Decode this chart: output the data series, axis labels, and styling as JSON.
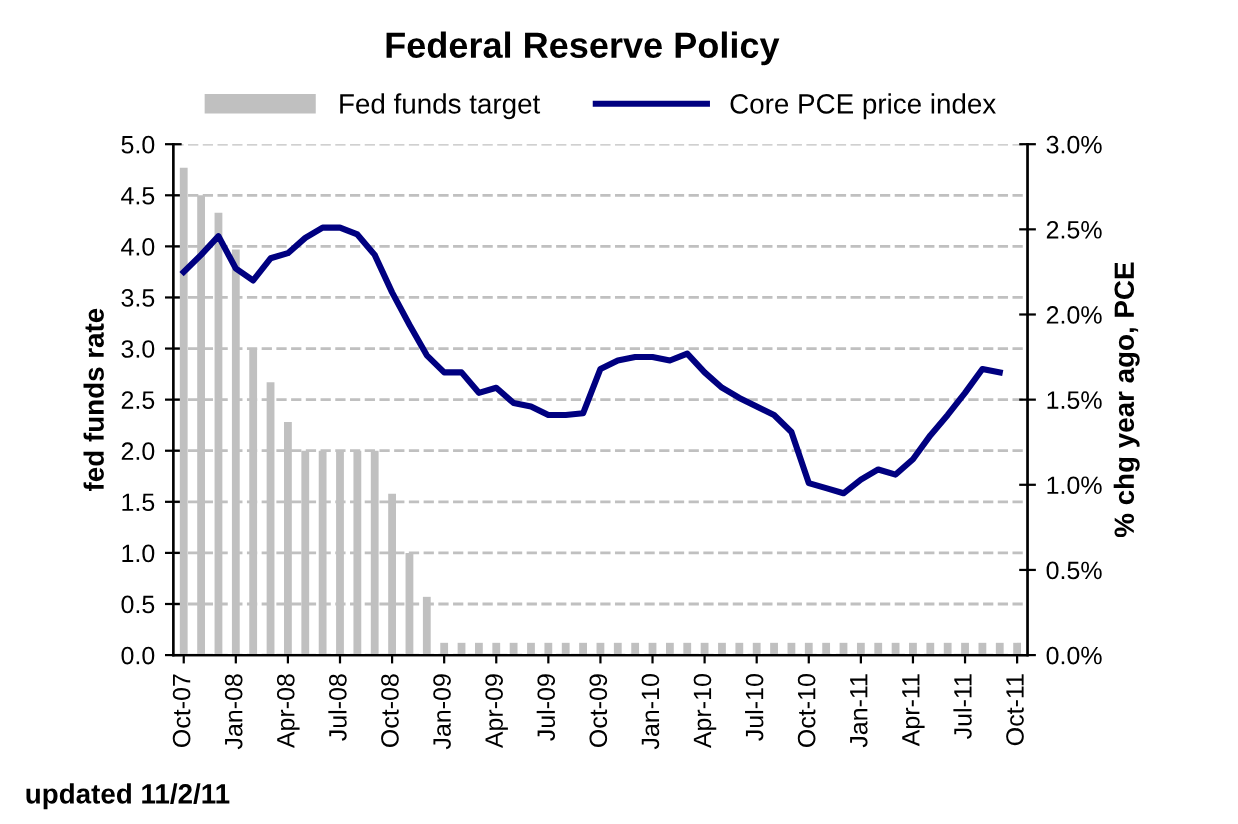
{
  "chart_data": {
    "type": "bar",
    "title": "Federal Reserve Policy",
    "ylabel": "fed funds rate",
    "y2label": "% chg year ago, PCE",
    "annotations": [
      "updated 11/2/11"
    ],
    "categories": [
      "Oct-07",
      null,
      null,
      "Jan-08",
      null,
      null,
      "Apr-08",
      null,
      null,
      "Jul-08",
      null,
      null,
      "Oct-08",
      null,
      null,
      "Jan-09",
      null,
      null,
      "Apr-09",
      null,
      null,
      "Jul-09",
      null,
      null,
      "Oct-09",
      null,
      null,
      "Jan-10",
      null,
      null,
      "Apr-10",
      null,
      null,
      "Jul-10",
      null,
      null,
      "Oct-10",
      null,
      null,
      "Jan-11",
      null,
      null,
      "Apr-11",
      null,
      null,
      "Jul-11",
      null,
      null,
      "Oct-11"
    ],
    "series": [
      {
        "name": "Fed funds target",
        "color": "#c0c0c0",
        "values": [
          4.77,
          4.5,
          4.33,
          3.97,
          3.0,
          2.67,
          2.28,
          2.0,
          2.0,
          2.0,
          2.0,
          2.0,
          1.58,
          1.0,
          0.57,
          0.12,
          0.12,
          0.12,
          0.12,
          0.12,
          0.12,
          0.12,
          0.12,
          0.12,
          0.12,
          0.12,
          0.12,
          0.12,
          0.12,
          0.12,
          0.12,
          0.12,
          0.12,
          0.12,
          0.12,
          0.12,
          0.12,
          0.12,
          0.12,
          0.12,
          0.12,
          0.12,
          0.12,
          0.12,
          0.12,
          0.12,
          0.12,
          0.12,
          0.12
        ]
      },
      {
        "name": "Core PCE price index",
        "type": "line",
        "axis": "y2",
        "color": "#000080",
        "values": [
          2.25,
          2.35,
          2.46,
          2.27,
          2.2,
          2.33,
          2.36,
          2.45,
          2.51,
          2.51,
          2.47,
          2.35,
          2.13,
          1.94,
          1.76,
          1.66,
          1.66,
          1.54,
          1.57,
          1.48,
          1.46,
          1.41,
          1.41,
          1.42,
          1.68,
          1.73,
          1.75,
          1.75,
          1.73,
          1.77,
          1.66,
          1.57,
          1.51,
          1.46,
          1.41,
          1.31,
          1.01,
          0.98,
          0.95,
          1.03,
          1.09,
          1.06,
          1.15,
          1.29,
          1.41,
          1.54,
          1.68,
          1.66,
          null
        ]
      }
    ],
    "ylim": [
      0,
      5
    ],
    "yticks": [
      {
        "value": 0,
        "label": "0.0"
      },
      {
        "value": 0.5,
        "label": "0.5"
      },
      {
        "value": 1,
        "label": "1.0"
      },
      {
        "value": 1.5,
        "label": "1.5"
      },
      {
        "value": 2,
        "label": "2.0"
      },
      {
        "value": 2.5,
        "label": "2.5"
      },
      {
        "value": 3,
        "label": "3.0"
      },
      {
        "value": 3.5,
        "label": "3.5"
      },
      {
        "value": 4,
        "label": "4.0"
      },
      {
        "value": 4.5,
        "label": "4.5"
      },
      {
        "value": 5,
        "label": "5.0"
      }
    ],
    "y2lim": [
      0,
      3
    ],
    "y2ticks": [
      {
        "value": 0,
        "label": "0.0%"
      },
      {
        "value": 0.5,
        "label": "0.5%"
      },
      {
        "value": 1,
        "label": "1.0%"
      },
      {
        "value": 1.5,
        "label": "1.5%"
      },
      {
        "value": 2,
        "label": "2.0%"
      },
      {
        "value": 2.5,
        "label": "2.5%"
      },
      {
        "value": 3,
        "label": "3.0%"
      }
    ],
    "grid": "y",
    "legend": "top",
    "marker": "none",
    "line_style": "solid"
  }
}
